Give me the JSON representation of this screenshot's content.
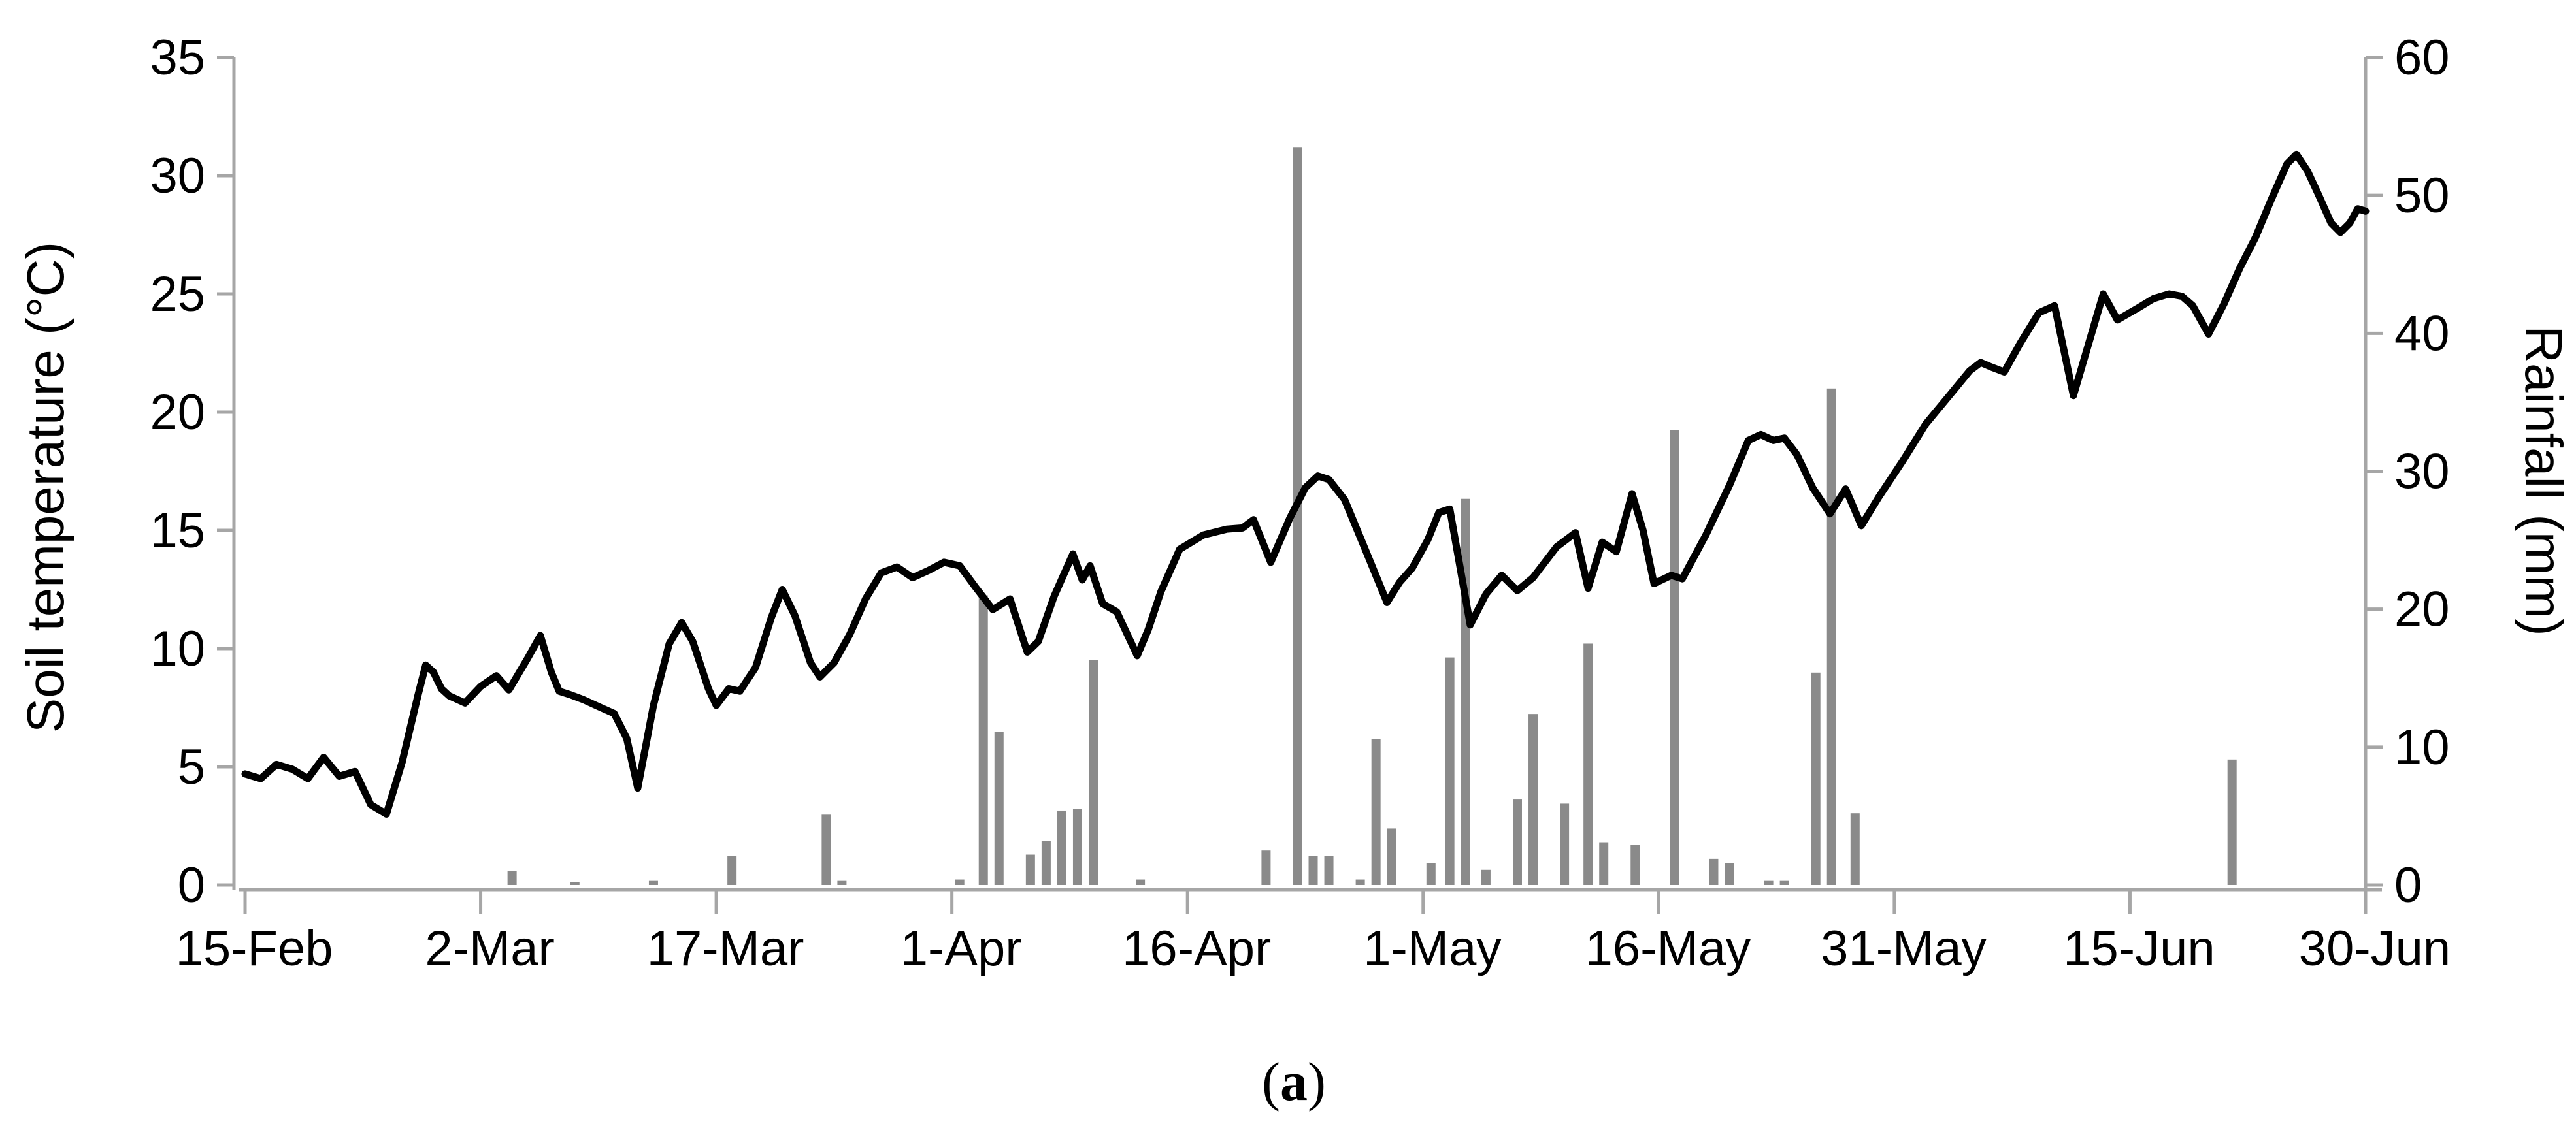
{
  "figure": {
    "caption": {
      "open": "(",
      "letter": "a",
      "close": ")"
    }
  },
  "chart_data": {
    "type": "combo-line-bar",
    "title": "",
    "ylabel_left": "Soil temperature (°C)",
    "ylabel_right": "Rainfall (mm)",
    "xlabel": "",
    "x_tick_labels": [
      "15-Feb",
      "2-Mar",
      "17-Mar",
      "1-Apr",
      "16-Apr",
      "1-May",
      "16-May",
      "31-May",
      "15-Jun",
      "30-Jun"
    ],
    "x_tick_days": [
      0,
      15,
      30,
      45,
      60,
      75,
      90,
      105,
      120,
      135
    ],
    "x_range_days": [
      0,
      135
    ],
    "left_axis": {
      "min": 0,
      "max": 35,
      "step": 5,
      "ticks": [
        0,
        5,
        10,
        15,
        20,
        25,
        30,
        35
      ]
    },
    "right_axis": {
      "min": 0,
      "max": 60,
      "step": 10,
      "ticks": [
        0,
        10,
        20,
        30,
        40,
        50,
        60
      ]
    },
    "grid": false,
    "legend": "none",
    "colors": {
      "line": "#000000",
      "bar": "#8a8a8a",
      "axis": "#a6a6a6",
      "text": "#000000"
    },
    "series": [
      {
        "name": "Soil temperature",
        "type": "line",
        "axis": "left",
        "points_day_value": [
          [
            0,
            4.7
          ],
          [
            1,
            4.5
          ],
          [
            2,
            5.1
          ],
          [
            3,
            4.9
          ],
          [
            4,
            4.5
          ],
          [
            5,
            5.4
          ],
          [
            6,
            4.6
          ],
          [
            7,
            4.8
          ],
          [
            8,
            3.4
          ],
          [
            9,
            3.0
          ],
          [
            10,
            5.2
          ],
          [
            11,
            8.0
          ],
          [
            11.5,
            9.3
          ],
          [
            12,
            9.0
          ],
          [
            12.5,
            8.3
          ],
          [
            13,
            8.0
          ],
          [
            14,
            7.7
          ],
          [
            15,
            8.4
          ],
          [
            16,
            8.85
          ],
          [
            16.8,
            8.25
          ],
          [
            18,
            9.6
          ],
          [
            18.8,
            10.55
          ],
          [
            19.5,
            9.0
          ],
          [
            20,
            8.2
          ],
          [
            20.7,
            8.05
          ],
          [
            21.5,
            7.85
          ],
          [
            22.5,
            7.55
          ],
          [
            23.5,
            7.25
          ],
          [
            24.3,
            6.2
          ],
          [
            25,
            4.1
          ],
          [
            26,
            7.6
          ],
          [
            27,
            10.2
          ],
          [
            27.8,
            11.1
          ],
          [
            28.5,
            10.3
          ],
          [
            29.5,
            8.3
          ],
          [
            30,
            7.6
          ],
          [
            30.8,
            8.3
          ],
          [
            31.5,
            8.2
          ],
          [
            32.5,
            9.2
          ],
          [
            33.5,
            11.3
          ],
          [
            34.2,
            12.5
          ],
          [
            35,
            11.4
          ],
          [
            36,
            9.4
          ],
          [
            36.6,
            8.8
          ],
          [
            37.5,
            9.4
          ],
          [
            38.5,
            10.6
          ],
          [
            39.5,
            12.1
          ],
          [
            40.5,
            13.2
          ],
          [
            41.5,
            13.45
          ],
          [
            42.5,
            13.0
          ],
          [
            43.5,
            13.3
          ],
          [
            44.5,
            13.65
          ],
          [
            45.5,
            13.5
          ],
          [
            46.5,
            12.6
          ],
          [
            47.6,
            11.65
          ],
          [
            48.7,
            12.1
          ],
          [
            49.8,
            9.85
          ],
          [
            50.5,
            10.3
          ],
          [
            51.5,
            12.2
          ],
          [
            52.7,
            14.0
          ],
          [
            53.3,
            12.9
          ],
          [
            53.8,
            13.5
          ],
          [
            54.6,
            11.9
          ],
          [
            55.5,
            11.55
          ],
          [
            56.8,
            9.7
          ],
          [
            57.5,
            10.8
          ],
          [
            58.3,
            12.4
          ],
          [
            59.5,
            14.2
          ],
          [
            61,
            14.8
          ],
          [
            62.5,
            15.05
          ],
          [
            63.5,
            15.1
          ],
          [
            64.2,
            15.45
          ],
          [
            65.3,
            13.65
          ],
          [
            66.5,
            15.5
          ],
          [
            67.5,
            16.8
          ],
          [
            68.3,
            17.3
          ],
          [
            69,
            17.15
          ],
          [
            70,
            16.3
          ],
          [
            71.5,
            13.9
          ],
          [
            72.7,
            11.95
          ],
          [
            73.5,
            12.8
          ],
          [
            74.3,
            13.4
          ],
          [
            75.3,
            14.6
          ],
          [
            76,
            15.75
          ],
          [
            76.7,
            15.9
          ],
          [
            77.2,
            14.0
          ],
          [
            78,
            11.0
          ],
          [
            79,
            12.3
          ],
          [
            80,
            13.1
          ],
          [
            81,
            12.45
          ],
          [
            82,
            13.0
          ],
          [
            83.5,
            14.3
          ],
          [
            84.7,
            14.9
          ],
          [
            85.5,
            12.55
          ],
          [
            86.4,
            14.5
          ],
          [
            87.3,
            14.1
          ],
          [
            88.3,
            16.55
          ],
          [
            89,
            15.0
          ],
          [
            89.7,
            12.75
          ],
          [
            90.8,
            13.1
          ],
          [
            91.5,
            12.95
          ],
          [
            93,
            14.8
          ],
          [
            94.5,
            16.9
          ],
          [
            95.7,
            18.8
          ],
          [
            96.5,
            19.05
          ],
          [
            97.3,
            18.8
          ],
          [
            98,
            18.9
          ],
          [
            98.8,
            18.2
          ],
          [
            99.8,
            16.8
          ],
          [
            100.9,
            15.7
          ],
          [
            101.9,
            16.75
          ],
          [
            102.9,
            15.2
          ],
          [
            104,
            16.4
          ],
          [
            105.5,
            17.9
          ],
          [
            107,
            19.5
          ],
          [
            108.5,
            20.7
          ],
          [
            109.8,
            21.75
          ],
          [
            110.5,
            22.1
          ],
          [
            111.2,
            21.9
          ],
          [
            112,
            21.7
          ],
          [
            113,
            22.9
          ],
          [
            114.2,
            24.2
          ],
          [
            115.2,
            24.5
          ],
          [
            116.4,
            20.7
          ],
          [
            117.5,
            23.2
          ],
          [
            118.3,
            25.0
          ],
          [
            119.2,
            23.9
          ],
          [
            120.5,
            24.4
          ],
          [
            121.5,
            24.8
          ],
          [
            122.5,
            25.0
          ],
          [
            123.3,
            24.9
          ],
          [
            124,
            24.5
          ],
          [
            125,
            23.3
          ],
          [
            126,
            24.6
          ],
          [
            127,
            26.1
          ],
          [
            128,
            27.4
          ],
          [
            129,
            29.0
          ],
          [
            130,
            30.5
          ],
          [
            130.6,
            30.9
          ],
          [
            131.3,
            30.2
          ],
          [
            132,
            29.2
          ],
          [
            132.8,
            28.0
          ],
          [
            133.4,
            27.6
          ],
          [
            134,
            28.0
          ],
          [
            134.5,
            28.6
          ],
          [
            135,
            28.5
          ]
        ]
      },
      {
        "name": "Rainfall",
        "type": "bar",
        "axis": "right",
        "events_date_day_mm": [
          [
            "4-Mar",
            17,
            1.0
          ],
          [
            "8-Mar",
            21,
            0.2
          ],
          [
            "13-Mar",
            26,
            0.3
          ],
          [
            "18-Mar",
            31,
            2.1
          ],
          [
            "24-Mar",
            37,
            5.1
          ],
          [
            "25-Mar",
            38,
            0.3
          ],
          [
            "1-Apr",
            45.5,
            0.4
          ],
          [
            "3-Apr",
            47,
            21.0
          ],
          [
            "4-Apr",
            48,
            11.1
          ],
          [
            "6-Apr",
            50,
            2.2
          ],
          [
            "7-Apr",
            51,
            3.2
          ],
          [
            "8-Apr",
            52,
            5.4
          ],
          [
            "9-Apr",
            53,
            5.5
          ],
          [
            "10-Apr",
            54,
            16.3
          ],
          [
            "13-Apr",
            57,
            0.4
          ],
          [
            "21-Apr",
            65,
            2.5
          ],
          [
            "23-Apr",
            67,
            53.5
          ],
          [
            "24-Apr",
            68,
            2.1
          ],
          [
            "25-Apr",
            69,
            2.1
          ],
          [
            "26-Apr",
            71,
            0.4
          ],
          [
            "27-Apr",
            72,
            10.6
          ],
          [
            "28-Apr",
            73,
            4.1
          ],
          [
            "1-May",
            75.5,
            1.6
          ],
          [
            "2-May",
            76.7,
            16.5
          ],
          [
            "3-May",
            77.7,
            28.0
          ],
          [
            "5-May",
            79,
            1.1
          ],
          [
            "7-May",
            81,
            6.2
          ],
          [
            "8-May",
            82,
            12.4
          ],
          [
            "10-May",
            84,
            5.9
          ],
          [
            "11-May",
            85.5,
            17.5
          ],
          [
            "12-May",
            86.5,
            3.1
          ],
          [
            "14-May",
            88.5,
            2.9
          ],
          [
            "17-May",
            91,
            33.0
          ],
          [
            "19-May",
            93.5,
            1.9
          ],
          [
            "20-May",
            94.5,
            1.6
          ],
          [
            "23-May",
            97,
            0.3
          ],
          [
            "24-May",
            98,
            0.3
          ],
          [
            "26-May",
            100,
            15.4
          ],
          [
            "27-May",
            101,
            36.0
          ],
          [
            "28-May",
            102.5,
            5.2
          ],
          [
            "21-Jun",
            126.5,
            9.1
          ]
        ]
      }
    ]
  }
}
